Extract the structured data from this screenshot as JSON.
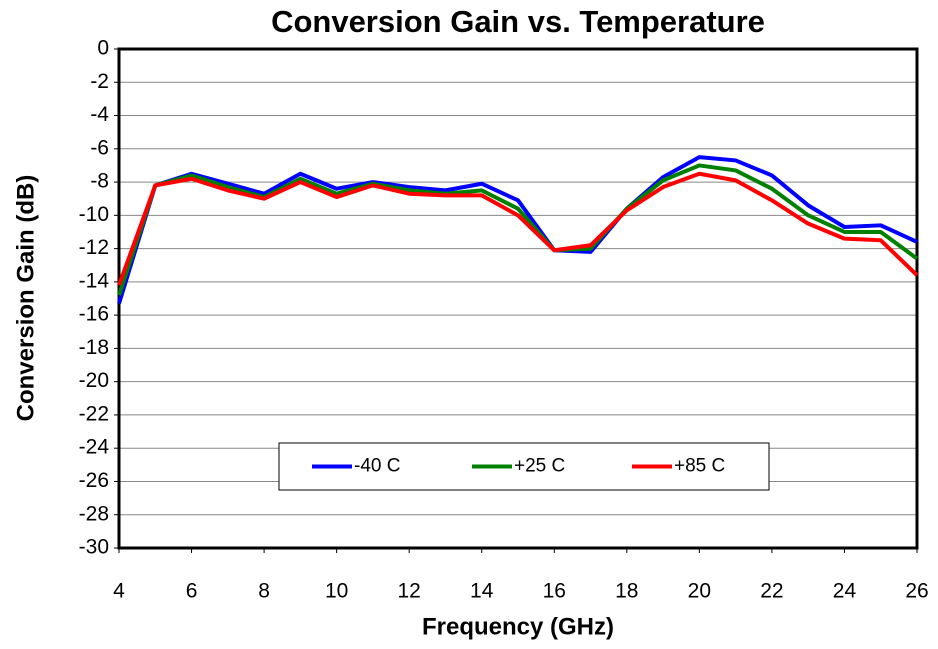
{
  "chart_data": {
    "type": "line",
    "title": "Conversion Gain vs. Temperature",
    "x_label": "Frequency (GHz)",
    "y_label": "Conversion Gain (dB)",
    "x": [
      4,
      5,
      6,
      7,
      8,
      9,
      10,
      11,
      12,
      13,
      14,
      15,
      16,
      17,
      18,
      19,
      20,
      21,
      22,
      23,
      24,
      25,
      26
    ],
    "series": [
      {
        "name": "-40 C",
        "color": "#0000ff",
        "values": [
          -15.3,
          -8.2,
          -7.5,
          -8.1,
          -8.7,
          -7.5,
          -8.4,
          -8.0,
          -8.3,
          -8.5,
          -8.1,
          -9.1,
          -12.1,
          -12.2,
          -9.6,
          -7.7,
          -6.5,
          -6.7,
          -7.6,
          -9.4,
          -10.7,
          -10.6,
          -11.6
        ]
      },
      {
        "name": "+25 C",
        "color": "#008000",
        "values": [
          -14.8,
          -8.2,
          -7.6,
          -8.3,
          -8.9,
          -7.8,
          -8.7,
          -8.1,
          -8.5,
          -8.7,
          -8.5,
          -9.6,
          -12.1,
          -12.0,
          -9.6,
          -7.9,
          -7.0,
          -7.3,
          -8.4,
          -10.0,
          -11.0,
          -11.0,
          -12.6
        ]
      },
      {
        "name": "+85 C",
        "color": "#ff0000",
        "values": [
          -14.2,
          -8.2,
          -7.8,
          -8.5,
          -9.0,
          -8.0,
          -8.9,
          -8.2,
          -8.7,
          -8.8,
          -8.8,
          -10.0,
          -12.1,
          -11.8,
          -9.7,
          -8.3,
          -7.5,
          -7.9,
          -9.1,
          -10.5,
          -11.4,
          -11.5,
          -13.6
        ]
      }
    ],
    "xlim": [
      4,
      26
    ],
    "xticks": [
      4,
      6,
      8,
      10,
      12,
      14,
      16,
      18,
      20,
      22,
      24,
      26
    ],
    "ylim": [
      -30,
      0
    ],
    "yticks": [
      0,
      -2,
      -4,
      -6,
      -8,
      -10,
      -12,
      -14,
      -16,
      -18,
      -20,
      -22,
      -24,
      -26,
      -28,
      -30
    ],
    "grid": true,
    "legend_position": "lower center"
  }
}
